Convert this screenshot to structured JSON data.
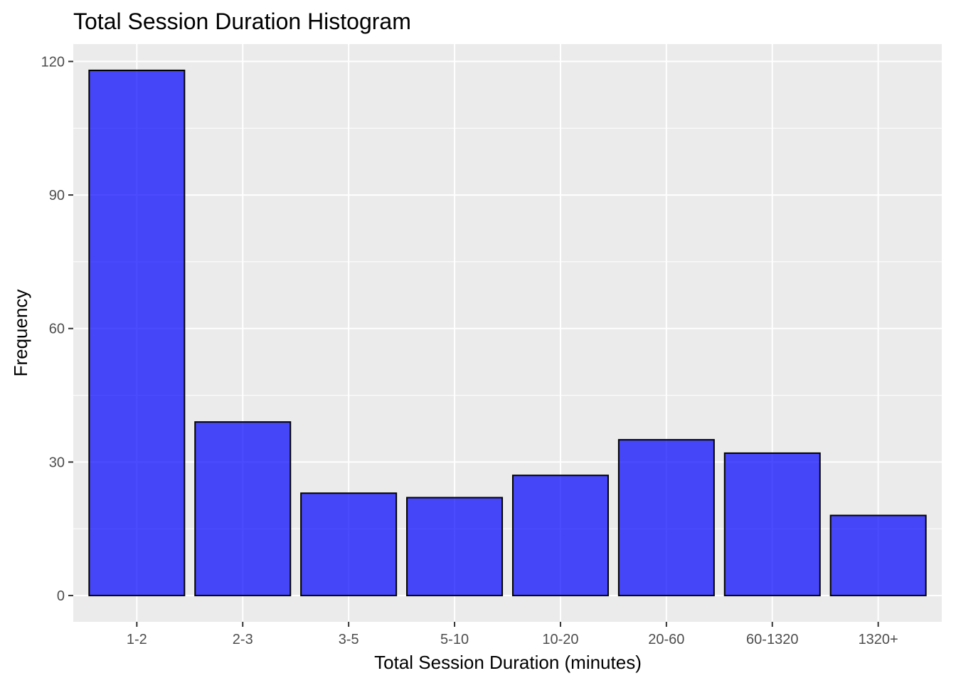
{
  "chart_data": {
    "type": "bar",
    "title": "Total Session Duration Histogram",
    "xlabel": "Total Session Duration (minutes)",
    "ylabel": "Frequency",
    "categories": [
      "1-2",
      "2-3",
      "3-5",
      "5-10",
      "10-20",
      "20-60",
      "60-1320",
      "1320+"
    ],
    "values": [
      118,
      39,
      23,
      22,
      27,
      35,
      32,
      18
    ],
    "ylim": [
      -5.9,
      123.9
    ],
    "yticks": [
      0,
      30,
      60,
      90,
      120
    ],
    "bar_color": "#0000ff",
    "bar_opacity": 0.7,
    "bar_outline": "#000000",
    "panel_background": "#ebebeb",
    "grid": true,
    "legend": "none"
  }
}
